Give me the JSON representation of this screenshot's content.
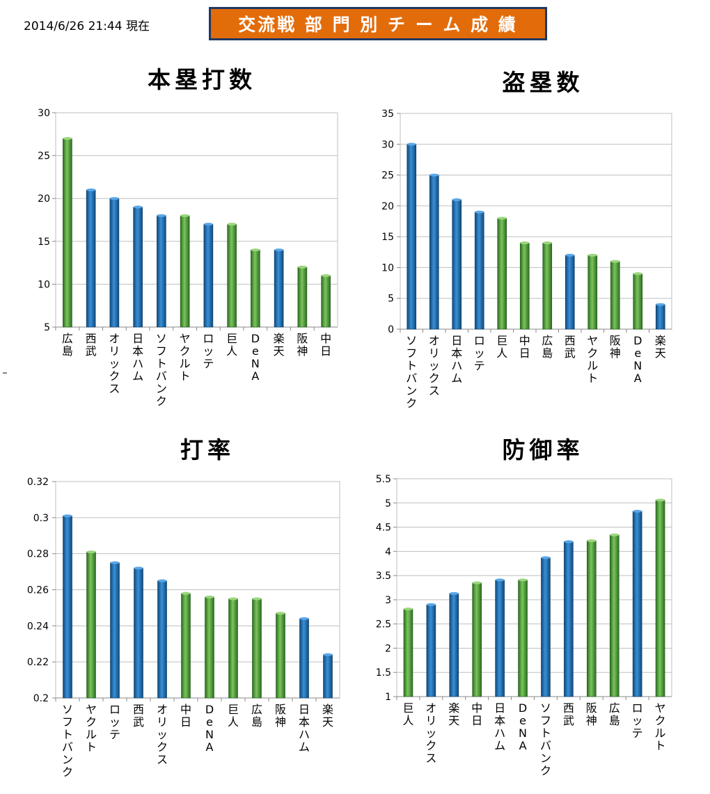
{
  "header": {
    "timestamp": "2014/6/26 21:44 現在",
    "banner": "交流戦 部 門 別 チ ー ム 成 績"
  },
  "colors": {
    "blue": "#1f6fb2",
    "green": "#4aa03a",
    "grid": "#bfbfbf",
    "banner_bg": "#e36c0a",
    "banner_border": "#1f3864"
  },
  "chart_data": [
    {
      "type": "bar",
      "title": "本塁打数",
      "categories": [
        "広島",
        "西武",
        "オリックス",
        "日本ハム",
        "ソフトバンク",
        "ヤクルト",
        "ロッテ",
        "巨人",
        "DeNA",
        "楽天",
        "阪神",
        "中日"
      ],
      "values": [
        27,
        21,
        20,
        19,
        18,
        18,
        17,
        17,
        14,
        14,
        12,
        11
      ],
      "bar_colors": [
        "green",
        "blue",
        "blue",
        "blue",
        "blue",
        "green",
        "blue",
        "green",
        "green",
        "blue",
        "green",
        "green"
      ],
      "ylim": [
        5,
        30
      ],
      "yticks": [
        5,
        10,
        15,
        20,
        25,
        30
      ],
      "ytick_labels": [
        "5",
        "10",
        "15",
        "20",
        "25",
        "30"
      ],
      "grid": true
    },
    {
      "type": "bar",
      "title": "盗塁数",
      "categories": [
        "ソフトバンク",
        "オリックス",
        "日本ハム",
        "ロッテ",
        "巨人",
        "中日",
        "広島",
        "西武",
        "ヤクルト",
        "阪神",
        "DeNA",
        "楽天"
      ],
      "values": [
        30,
        25,
        21,
        19,
        18,
        14,
        14,
        12,
        12,
        11,
        9,
        4
      ],
      "bar_colors": [
        "blue",
        "blue",
        "blue",
        "blue",
        "green",
        "green",
        "green",
        "blue",
        "green",
        "green",
        "green",
        "blue"
      ],
      "ylim": [
        0,
        35
      ],
      "yticks": [
        0,
        5,
        10,
        15,
        20,
        25,
        30,
        35
      ],
      "ytick_labels": [
        "0",
        "5",
        "10",
        "15",
        "20",
        "25",
        "30",
        "35"
      ],
      "grid": true
    },
    {
      "type": "bar",
      "title": "打率",
      "categories": [
        "ソフトバンク",
        "ヤクルト",
        "ロッテ",
        "西武",
        "オリックス",
        "中日",
        "DeNA",
        "巨人",
        "広島",
        "阪神",
        "日本ハム",
        "楽天"
      ],
      "values": [
        0.301,
        0.281,
        0.275,
        0.272,
        0.265,
        0.258,
        0.256,
        0.255,
        0.255,
        0.247,
        0.244,
        0.224
      ],
      "bar_colors": [
        "blue",
        "green",
        "blue",
        "blue",
        "blue",
        "green",
        "green",
        "green",
        "green",
        "green",
        "blue",
        "blue"
      ],
      "ylim": [
        0.2,
        0.32
      ],
      "yticks": [
        0.2,
        0.22,
        0.24,
        0.26,
        0.28,
        0.3,
        0.32
      ],
      "ytick_labels": [
        "0.2",
        "0.22",
        "0.24",
        "0.26",
        "0.28",
        "0.3",
        "0.32"
      ],
      "grid": true
    },
    {
      "type": "bar",
      "title": "防御率",
      "categories": [
        "巨人",
        "オリックス",
        "楽天",
        "中日",
        "日本ハム",
        "DeNA",
        "ソフトバンク",
        "西武",
        "阪神",
        "広島",
        "ロッテ",
        "ヤクルト"
      ],
      "values": [
        2.81,
        2.9,
        3.13,
        3.35,
        3.41,
        3.41,
        3.87,
        4.2,
        4.22,
        4.34,
        4.83,
        5.06
      ],
      "bar_colors": [
        "green",
        "blue",
        "blue",
        "green",
        "blue",
        "green",
        "blue",
        "blue",
        "green",
        "green",
        "blue",
        "green"
      ],
      "ylim": [
        1,
        5.5
      ],
      "yticks": [
        1,
        1.5,
        2,
        2.5,
        3,
        3.5,
        4,
        4.5,
        5,
        5.5
      ],
      "ytick_labels": [
        "1",
        "1.5",
        "2",
        "2.5",
        "3",
        "3.5",
        "4",
        "4.5",
        "5",
        "5.5"
      ],
      "grid": true
    }
  ]
}
